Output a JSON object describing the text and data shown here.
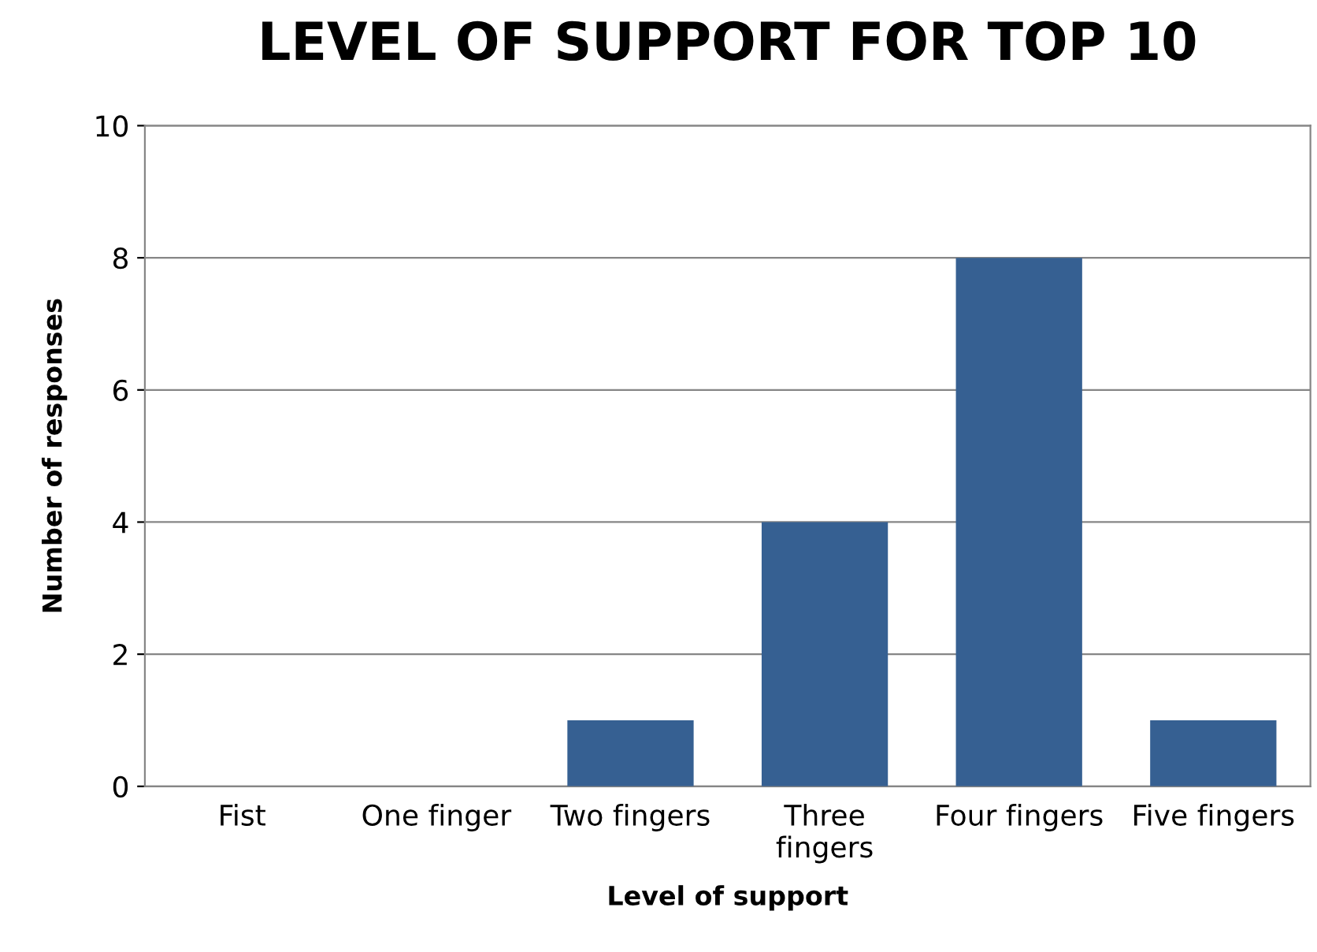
{
  "chart_data": {
    "type": "bar",
    "title": "LEVEL OF SUPPORT FOR TOP 10",
    "xlabel": "Level of support",
    "ylabel": "Number of responses",
    "categories": [
      "Fist",
      "One finger",
      "Two fingers",
      "Three\nfingers",
      "Four fingers",
      "Five fingers"
    ],
    "values": [
      0,
      0,
      1,
      4,
      8,
      1
    ],
    "color": "#366092",
    "ylim": [
      0,
      10
    ],
    "yticks": [
      0,
      2,
      4,
      6,
      8,
      10
    ],
    "grid": "y",
    "legend": false
  }
}
